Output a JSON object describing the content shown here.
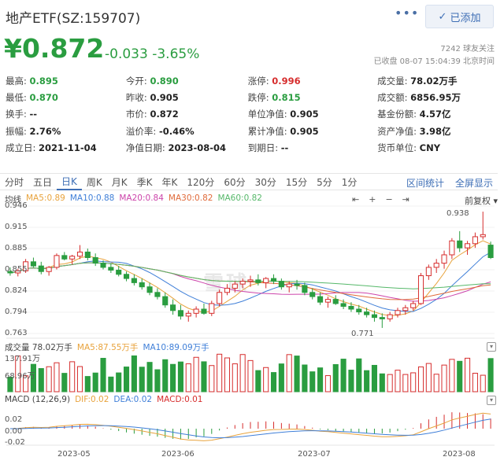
{
  "header": {
    "title": "地产ETF(SZ:159707)",
    "more_label": "•••",
    "follow_label": "已添加",
    "follow_icon": "check-icon"
  },
  "price": {
    "current": "¥0.872",
    "change": "-0.033",
    "change_pct": "-3.65%",
    "fans": "7242 球友关注",
    "status": "已收盘 08-07 15:04:39 北京时间"
  },
  "quote_rows": [
    [
      {
        "k": "最高:",
        "v": "0.895",
        "c": "green"
      },
      {
        "k": "今开:",
        "v": "0.890",
        "c": "green"
      },
      {
        "k": "涨停:",
        "v": "0.996",
        "c": "red"
      },
      {
        "k": "成交量:",
        "v": "78.02万手",
        "c": ""
      }
    ],
    [
      {
        "k": "最低:",
        "v": "0.870",
        "c": "green"
      },
      {
        "k": "昨收:",
        "v": "0.905",
        "c": ""
      },
      {
        "k": "跌停:",
        "v": "0.815",
        "c": "green"
      },
      {
        "k": "成交额:",
        "v": "6856.95万",
        "c": ""
      }
    ],
    [
      {
        "k": "换手:",
        "v": "--",
        "c": ""
      },
      {
        "k": "市价:",
        "v": "0.872",
        "c": ""
      },
      {
        "k": "单位净值:",
        "v": "0.905",
        "c": ""
      },
      {
        "k": "基金份额:",
        "v": "4.57亿",
        "c": ""
      }
    ],
    [
      {
        "k": "振幅:",
        "v": "2.76%",
        "c": ""
      },
      {
        "k": "溢价率:",
        "v": "-0.46%",
        "c": ""
      },
      {
        "k": "累计净值:",
        "v": "0.905",
        "c": ""
      },
      {
        "k": "资产净值:",
        "v": "3.98亿",
        "c": ""
      }
    ],
    [
      {
        "k": "成立日:",
        "v": "2021-11-04",
        "c": ""
      },
      {
        "k": "净值日期:",
        "v": "2023-08-04",
        "c": ""
      },
      {
        "k": "到期日:",
        "v": "--",
        "c": ""
      },
      {
        "k": "货币单位:",
        "v": "CNY",
        "c": ""
      }
    ]
  ],
  "tabs": [
    "分时",
    "五日",
    "日K",
    "周K",
    "月K",
    "季K",
    "年K",
    "120分",
    "60分",
    "30分",
    "15分",
    "5分",
    "1分"
  ],
  "active_tab": "日K",
  "tab_links": [
    "区间统计",
    "全屏显示"
  ],
  "ma_legend": {
    "label": "均线",
    "items": [
      {
        "text": "MA5:0.89",
        "color": "#e8a33d"
      },
      {
        "text": "MA10:0.88",
        "color": "#3f7fd8"
      },
      {
        "text": "MA20:0.84",
        "color": "#cc44aa"
      },
      {
        "text": "MA30:0.82",
        "color": "#e06a3a"
      },
      {
        "text": "MA60:0.82",
        "color": "#56b86a"
      }
    ]
  },
  "chart_controls": [
    "back-icon",
    "zoom-in-icon",
    "zoom-out-icon",
    "forward-icon"
  ],
  "adjust_label": "前复权",
  "price_axis": [
    "0.946",
    "0.915",
    "0.885",
    "0.855",
    "0.824",
    "0.794",
    "0.763"
  ],
  "annotations": {
    "high": "0.938",
    "low": "0.771"
  },
  "volume_legend": {
    "label": "成交量 78.02万手",
    "items": [
      {
        "text": "MA5:87.55万手",
        "color": "#e8a33d"
      },
      {
        "text": "MA10:89.09万手",
        "color": "#3f7fd8"
      }
    ]
  },
  "volume_axis": [
    "137.91万",
    "68.96万"
  ],
  "macd_legend": {
    "label": "MACD (12,26,9)",
    "items": [
      {
        "text": "DIF:0.02",
        "color": "#e8a33d"
      },
      {
        "text": "DEA:0.02",
        "color": "#3f7fd8"
      },
      {
        "text": "MACD:0.01",
        "color": "#d62d2d"
      }
    ]
  },
  "macd_axis": [
    "0.02",
    "0.00",
    "-0.02"
  ],
  "x_axis": [
    "2023-05",
    "2023-06",
    "2023-07",
    "2023-08"
  ],
  "watermark": "雪球",
  "colors": {
    "up": "#d62d2d",
    "down": "#2a9d40",
    "accent": "#3d6eb5"
  },
  "chart_data": {
    "type": "candlestick",
    "price_range": [
      0.763,
      0.946
    ],
    "candles_ohlc": [
      [
        0.852,
        0.858,
        0.846,
        0.85
      ],
      [
        0.85,
        0.856,
        0.845,
        0.853
      ],
      [
        0.853,
        0.87,
        0.85,
        0.866
      ],
      [
        0.866,
        0.872,
        0.858,
        0.86
      ],
      [
        0.86,
        0.866,
        0.848,
        0.852
      ],
      [
        0.852,
        0.86,
        0.846,
        0.858
      ],
      [
        0.858,
        0.878,
        0.855,
        0.875
      ],
      [
        0.875,
        0.88,
        0.868,
        0.87
      ],
      [
        0.87,
        0.876,
        0.862,
        0.874
      ],
      [
        0.874,
        0.89,
        0.87,
        0.88
      ],
      [
        0.88,
        0.885,
        0.868,
        0.872
      ],
      [
        0.872,
        0.878,
        0.86,
        0.864
      ],
      [
        0.864,
        0.868,
        0.855,
        0.858
      ],
      [
        0.858,
        0.864,
        0.85,
        0.854
      ],
      [
        0.854,
        0.86,
        0.845,
        0.848
      ],
      [
        0.848,
        0.852,
        0.838,
        0.842
      ],
      [
        0.842,
        0.848,
        0.832,
        0.836
      ],
      [
        0.836,
        0.842,
        0.826,
        0.83
      ],
      [
        0.83,
        0.836,
        0.818,
        0.822
      ],
      [
        0.822,
        0.828,
        0.812,
        0.816
      ],
      [
        0.816,
        0.822,
        0.8,
        0.804
      ],
      [
        0.804,
        0.812,
        0.79,
        0.796
      ],
      [
        0.796,
        0.804,
        0.783,
        0.788
      ],
      [
        0.788,
        0.796,
        0.78,
        0.792
      ],
      [
        0.792,
        0.802,
        0.786,
        0.798
      ],
      [
        0.798,
        0.806,
        0.79,
        0.792
      ],
      [
        0.792,
        0.81,
        0.788,
        0.806
      ],
      [
        0.806,
        0.826,
        0.802,
        0.822
      ],
      [
        0.822,
        0.834,
        0.818,
        0.828
      ],
      [
        0.828,
        0.838,
        0.822,
        0.834
      ],
      [
        0.834,
        0.842,
        0.828,
        0.838
      ],
      [
        0.838,
        0.846,
        0.83,
        0.84
      ],
      [
        0.84,
        0.848,
        0.832,
        0.836
      ],
      [
        0.836,
        0.844,
        0.828,
        0.842
      ],
      [
        0.842,
        0.848,
        0.834,
        0.838
      ],
      [
        0.838,
        0.842,
        0.826,
        0.83
      ],
      [
        0.83,
        0.838,
        0.822,
        0.834
      ],
      [
        0.834,
        0.84,
        0.826,
        0.832
      ],
      [
        0.832,
        0.836,
        0.818,
        0.822
      ],
      [
        0.822,
        0.828,
        0.812,
        0.816
      ],
      [
        0.816,
        0.822,
        0.804,
        0.808
      ],
      [
        0.808,
        0.816,
        0.8,
        0.812
      ],
      [
        0.812,
        0.818,
        0.804,
        0.806
      ],
      [
        0.806,
        0.812,
        0.798,
        0.802
      ],
      [
        0.802,
        0.808,
        0.794,
        0.798
      ],
      [
        0.798,
        0.804,
        0.79,
        0.794
      ],
      [
        0.794,
        0.8,
        0.786,
        0.79
      ],
      [
        0.79,
        0.796,
        0.78,
        0.786
      ],
      [
        0.786,
        0.792,
        0.771,
        0.784
      ],
      [
        0.784,
        0.794,
        0.78,
        0.79
      ],
      [
        0.79,
        0.8,
        0.786,
        0.796
      ],
      [
        0.796,
        0.804,
        0.79,
        0.8
      ],
      [
        0.8,
        0.81,
        0.796,
        0.806
      ],
      [
        0.806,
        0.85,
        0.804,
        0.846
      ],
      [
        0.846,
        0.862,
        0.84,
        0.858
      ],
      [
        0.858,
        0.87,
        0.85,
        0.864
      ],
      [
        0.864,
        0.882,
        0.856,
        0.876
      ],
      [
        0.876,
        0.9,
        0.87,
        0.896
      ],
      [
        0.896,
        0.91,
        0.88,
        0.886
      ],
      [
        0.886,
        0.896,
        0.876,
        0.892
      ],
      [
        0.892,
        0.908,
        0.886,
        0.902
      ],
      [
        0.902,
        0.938,
        0.898,
        0.905
      ],
      [
        0.89,
        0.895,
        0.87,
        0.872
      ]
    ]
  }
}
